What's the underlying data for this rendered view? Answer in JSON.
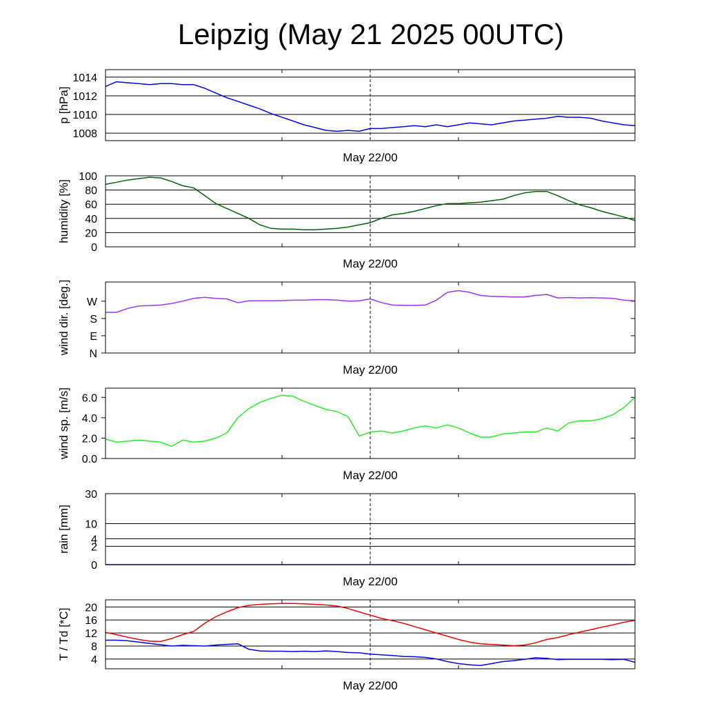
{
  "title": "Leipzig (May 21 2025 00UTC)",
  "chart_data": [
    {
      "type": "line",
      "ylabel": "p [hPa]",
      "x_tick_label": "May 22/00",
      "ylim": [
        1007.2,
        1014.8
      ],
      "yticks": [
        1008,
        1010,
        1012,
        1014
      ],
      "ytick_labels": [
        "1008",
        "1010",
        "1012",
        "1014"
      ],
      "grid": true,
      "series": [
        {
          "color": "#0000ee",
          "x": [
            0,
            1,
            2,
            3,
            4,
            5,
            6,
            7,
            8,
            9,
            10,
            11,
            12,
            13,
            14,
            15,
            16,
            17,
            18,
            19,
            20,
            21,
            22,
            23,
            24,
            25,
            26,
            27,
            28,
            29,
            30,
            31,
            32,
            33,
            34,
            35,
            36,
            37,
            38,
            39,
            40,
            41,
            42,
            43,
            44,
            45,
            46,
            47,
            48
          ],
          "y": [
            1013.0,
            1013.5,
            1013.4,
            1013.3,
            1013.2,
            1013.3,
            1013.3,
            1013.2,
            1013.2,
            1012.8,
            1012.3,
            1011.8,
            1011.4,
            1011.0,
            1010.6,
            1010.1,
            1009.7,
            1009.3,
            1008.9,
            1008.6,
            1008.3,
            1008.2,
            1008.3,
            1008.2,
            1008.5,
            1008.5,
            1008.6,
            1008.7,
            1008.8,
            1008.7,
            1008.9,
            1008.7,
            1008.9,
            1009.1,
            1009.0,
            1008.9,
            1009.1,
            1009.3,
            1009.4,
            1009.5,
            1009.6,
            1009.8,
            1009.7,
            1009.7,
            1009.6,
            1009.3,
            1009.1,
            1008.9,
            1008.8
          ]
        }
      ]
    },
    {
      "type": "line",
      "ylabel": "humidity [%]",
      "x_tick_label": "May 22/00",
      "ylim": [
        0,
        100
      ],
      "yticks": [
        0,
        20,
        40,
        60,
        80,
        100
      ],
      "ytick_labels": [
        "0",
        "20",
        "40",
        "60",
        "80",
        "100"
      ],
      "grid": true,
      "series": [
        {
          "color": "#006400",
          "x": [
            0,
            1,
            2,
            3,
            4,
            5,
            6,
            7,
            8,
            9,
            10,
            11,
            12,
            13,
            14,
            15,
            16,
            17,
            18,
            19,
            20,
            21,
            22,
            23,
            24,
            25,
            26,
            27,
            28,
            29,
            30,
            31,
            32,
            33,
            34,
            35,
            36,
            37,
            38,
            39,
            40,
            41,
            42,
            43,
            44,
            45,
            46,
            47,
            48
          ],
          "y": [
            88,
            91,
            94,
            96,
            98,
            97,
            92,
            86,
            83,
            72,
            61,
            54,
            47,
            40,
            31,
            26,
            25,
            25,
            24,
            24,
            25,
            26,
            28,
            31,
            34,
            40,
            45,
            47,
            50,
            54,
            58,
            61,
            61,
            62,
            63,
            65,
            67,
            72,
            76,
            78,
            78,
            72,
            65,
            59,
            55,
            50,
            46,
            42,
            37
          ]
        }
      ]
    },
    {
      "type": "line",
      "ylabel": "wind dir. [deg.]",
      "x_tick_label": "May 22/00",
      "ylim": [
        0,
        370
      ],
      "yticks": [
        0,
        90,
        180,
        270
      ],
      "ytick_labels": [
        "N",
        "E",
        "S",
        "W"
      ],
      "grid": false,
      "series": [
        {
          "color": "#9b30ff",
          "x": [
            0,
            1,
            2,
            3,
            4,
            5,
            6,
            7,
            8,
            9,
            10,
            11,
            12,
            13,
            14,
            15,
            16,
            17,
            18,
            19,
            20,
            21,
            22,
            23,
            24,
            25,
            26,
            27,
            28,
            29,
            30,
            31,
            32,
            33,
            34,
            35,
            36,
            37,
            38,
            39,
            40,
            41,
            42,
            43,
            44,
            45,
            46,
            47,
            48
          ],
          "y": [
            212,
            212,
            232,
            245,
            247,
            250,
            258,
            270,
            285,
            290,
            285,
            282,
            262,
            272,
            272,
            272,
            273,
            275,
            275,
            278,
            278,
            275,
            270,
            272,
            282,
            263,
            250,
            248,
            248,
            250,
            275,
            316,
            325,
            316,
            300,
            295,
            294,
            292,
            292,
            300,
            305,
            287,
            289,
            287,
            288,
            287,
            285,
            275,
            272
          ]
        }
      ]
    },
    {
      "type": "line",
      "ylabel": "wind sp. [m/s]",
      "x_tick_label": "May 22/00",
      "ylim": [
        0,
        6.9
      ],
      "yticks": [
        0,
        2,
        4,
        6
      ],
      "ytick_labels": [
        "0.0",
        "2.0",
        "4.0",
        "6.0"
      ],
      "grid": false,
      "series": [
        {
          "color": "#22ee22",
          "x": [
            0,
            1,
            2,
            3,
            4,
            5,
            6,
            7,
            8,
            9,
            10,
            11,
            12,
            13,
            14,
            15,
            16,
            17,
            18,
            19,
            20,
            21,
            22,
            23,
            24,
            25,
            26,
            27,
            28,
            29,
            30,
            31,
            32,
            33,
            34,
            35,
            36,
            37,
            38,
            39,
            40,
            41,
            42,
            43,
            44,
            45,
            46,
            47,
            48
          ],
          "y": [
            1.9,
            1.6,
            1.7,
            1.8,
            1.7,
            1.6,
            1.2,
            1.8,
            1.6,
            1.7,
            2.0,
            2.5,
            4.0,
            4.9,
            5.5,
            5.9,
            6.2,
            6.1,
            5.6,
            5.2,
            4.8,
            4.6,
            4.1,
            2.2,
            2.6,
            2.7,
            2.5,
            2.7,
            3.0,
            3.2,
            3.0,
            3.3,
            3.0,
            2.5,
            2.1,
            2.1,
            2.4,
            2.5,
            2.6,
            2.6,
            3.0,
            2.7,
            3.5,
            3.7,
            3.7,
            3.9,
            4.3,
            5.0,
            6.0
          ]
        }
      ]
    },
    {
      "type": "line",
      "ylabel": "rain [mm]",
      "x_tick_label": "May 22/00",
      "ylim": [
        0,
        30
      ],
      "yticks": [
        0,
        2,
        4,
        10,
        30
      ],
      "ytick_labels": [
        "0",
        "2",
        "4",
        "10",
        "30"
      ],
      "grid": true,
      "series": [
        {
          "color": "#0000ee",
          "x": [
            0,
            48
          ],
          "y": [
            0,
            0
          ]
        }
      ]
    },
    {
      "type": "line",
      "ylabel": "T / Td [*C]",
      "x_tick_label": "May 22/00",
      "ylim": [
        1,
        22.2
      ],
      "yticks": [
        4,
        8,
        12,
        16,
        20
      ],
      "ytick_labels": [
        "4",
        "8",
        "12",
        "16",
        "20"
      ],
      "grid": true,
      "series": [
        {
          "color": "#ee0000",
          "x": [
            0,
            1,
            2,
            3,
            4,
            5,
            6,
            7,
            8,
            9,
            10,
            11,
            12,
            13,
            14,
            15,
            16,
            17,
            18,
            19,
            20,
            21,
            22,
            23,
            24,
            25,
            26,
            27,
            28,
            29,
            30,
            31,
            32,
            33,
            34,
            35,
            36,
            37,
            38,
            39,
            40,
            41,
            42,
            43,
            44,
            45,
            46,
            47,
            48
          ],
          "y": [
            12.2,
            11.5,
            10.7,
            10.0,
            9.5,
            9.4,
            10.3,
            11.5,
            12.5,
            15.0,
            17.0,
            18.5,
            19.8,
            20.5,
            20.8,
            21.0,
            21.1,
            21.1,
            21.0,
            20.8,
            20.6,
            20.3,
            19.5,
            18.5,
            17.5,
            16.5,
            15.8,
            15.0,
            14.0,
            13.0,
            12.0,
            11.0,
            10.0,
            9.2,
            8.7,
            8.5,
            8.3,
            8.1,
            8.3,
            9.0,
            10.0,
            10.6,
            11.5,
            12.3,
            13.0,
            13.8,
            14.5,
            15.3,
            15.9
          ]
        },
        {
          "color": "#0000ee",
          "x": [
            0,
            1,
            2,
            3,
            4,
            5,
            6,
            7,
            8,
            9,
            10,
            11,
            12,
            13,
            14,
            15,
            16,
            17,
            18,
            19,
            20,
            21,
            22,
            23,
            24,
            25,
            26,
            27,
            28,
            29,
            30,
            31,
            32,
            33,
            34,
            35,
            36,
            37,
            38,
            39,
            40,
            41,
            42,
            43,
            44,
            45,
            46,
            47,
            48
          ],
          "y": [
            9.8,
            9.8,
            9.6,
            9.2,
            8.8,
            8.4,
            8.0,
            8.2,
            8.1,
            8.0,
            8.3,
            8.5,
            8.7,
            7.0,
            6.5,
            6.4,
            6.4,
            6.3,
            6.4,
            6.3,
            6.5,
            6.3,
            6.0,
            5.9,
            5.5,
            5.3,
            5.1,
            4.8,
            4.7,
            4.5,
            4.0,
            3.2,
            2.6,
            2.2,
            2.0,
            2.6,
            3.2,
            3.5,
            3.9,
            4.4,
            4.2,
            3.8,
            3.9,
            3.9,
            3.9,
            3.9,
            3.8,
            3.9,
            3.0
          ]
        }
      ]
    }
  ]
}
